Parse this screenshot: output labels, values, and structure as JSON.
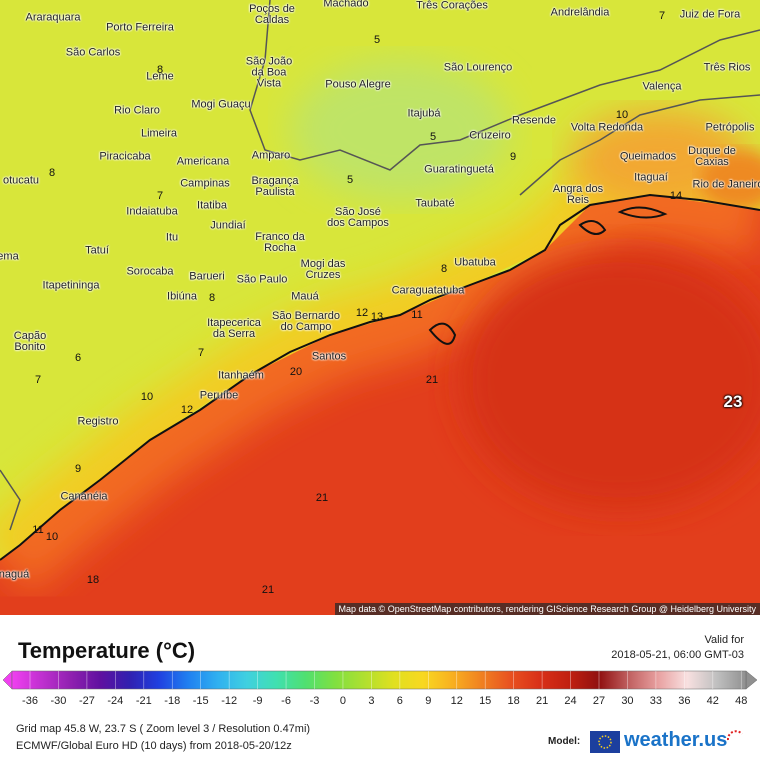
{
  "map": {
    "cities": [
      "Machado",
      "Três Corações",
      "Andrelândia",
      "Juiz de Fora",
      "Araraquara",
      "Porto Ferreira",
      "Poços de\nCaldas",
      "São Carlos",
      "São João\nda Boa\nVista",
      "São Lourenço",
      "Três Rios",
      "Leme",
      "Pouso Alegre",
      "Valença",
      "Mogi Guaçu",
      "Rio Claro",
      "Itajubá",
      "Resende",
      "Volta Redonda",
      "Petrópolis",
      "Limeira",
      "Cruzeiro",
      "Duque de\nCaxias",
      "Piracicaba",
      "Americana",
      "Amparo",
      "Queimados",
      "Guaratinguetá",
      "Itaguaí",
      "Rio de Janeiro",
      "Campinas",
      "Bragança\nPaulista",
      "otucatu",
      "Angra dos\nReis",
      "Indaiatuba",
      "Itatiba",
      "São José\ndos Campos",
      "Taubaté",
      "Jundiaí",
      "Franco da\nRocha",
      "Itu",
      "Tatuí",
      "ema",
      "Mogi das\nCruzes",
      "Ubatuba",
      "Sorocaba",
      "Barueri",
      "São Paulo",
      "Itapetininga",
      "Caraguatatuba",
      "Mauá",
      "Ibiúna",
      "Itapecerica\nda Serra",
      "São Bernardo\ndo Campo",
      "Capão\nBonito",
      "Santos",
      "Itanhaém",
      "Peruíbe",
      "Registro",
      "Cananéia",
      "naguá"
    ],
    "contour_labels": [
      7,
      5,
      8,
      10,
      5,
      9,
      8,
      7,
      14,
      5,
      8,
      8,
      12,
      13,
      11,
      6,
      7,
      7,
      20,
      21,
      10,
      12,
      23,
      9,
      21,
      11,
      10,
      18,
      21
    ],
    "attribution": "Map data © OpenStreetMap contributors, rendering GIScience Research Group @ Heidelberg University"
  },
  "legend": {
    "title": "Temperature (°C)",
    "ticks": [
      -36,
      -30,
      -27,
      -24,
      -21,
      -18,
      -15,
      -12,
      -9,
      -6,
      -3,
      0,
      3,
      6,
      9,
      12,
      15,
      18,
      21,
      24,
      27,
      30,
      33,
      36,
      42,
      48
    ],
    "colors": [
      "#f040f0",
      "#c030d0",
      "#9020b0",
      "#6010a0",
      "#3020b0",
      "#2040e0",
      "#2080f0",
      "#30b0f0",
      "#40d0e0",
      "#40e0b0",
      "#50e070",
      "#80e040",
      "#b0e030",
      "#e0e020",
      "#f8d820",
      "#f8b020",
      "#f08020",
      "#e85020",
      "#d83018",
      "#c02010",
      "#901010",
      "#c06060",
      "#e8a0a0",
      "#f8e0e0",
      "#c0c0c0",
      "#909090"
    ]
  },
  "valid": {
    "label": "Valid for",
    "time": "2018-05-21, 06:00 GMT-03"
  },
  "footer": {
    "grid": "Grid map 45.8 W, 23.7 S ( Zoom level 3 / Resolution 0.47mi)",
    "model_run": "ECMWF/Global Euro HD (10 days) from 2018-05-20/12z",
    "model_label": "Model:",
    "brand": "weather.us"
  }
}
